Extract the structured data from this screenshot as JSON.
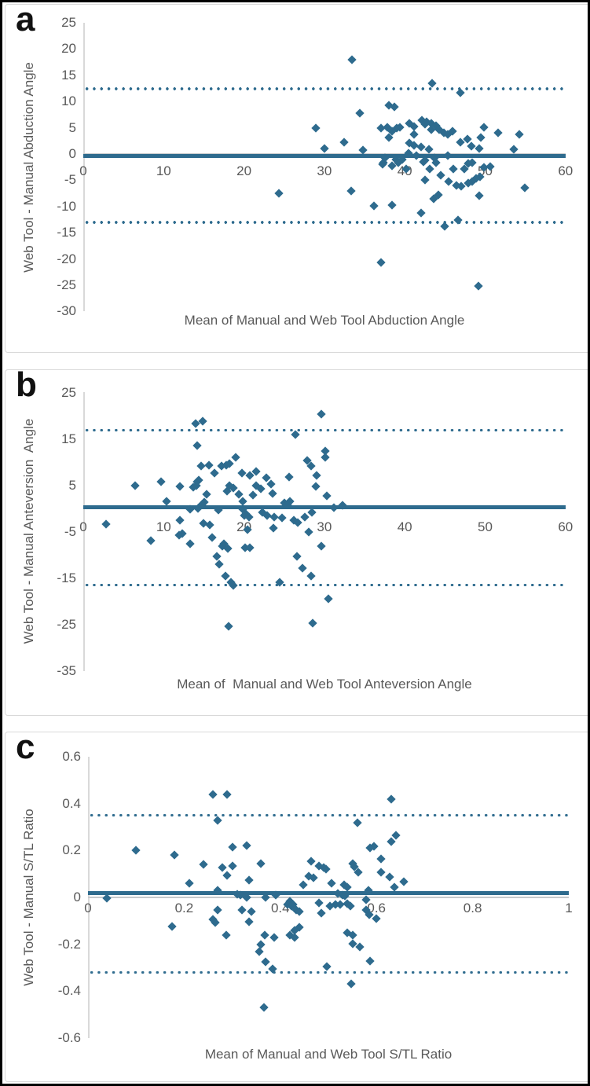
{
  "figure": {
    "type": "bland-altman-figure",
    "panel_count": 3,
    "colors": {
      "marker": "#2e6b8e",
      "mean_line": "#2e6b8e",
      "loa_dotted": "#2e6b8e",
      "axis_gray": "#d9d9d9",
      "zero_line": "#c6c9cc",
      "tick_text": "#595959",
      "panel_border": "#d9d9d9",
      "figure_border": "#000000",
      "panel_letter": "#111111"
    }
  },
  "chart_data": [
    {
      "type": "scatter",
      "panel_label": "a",
      "ylabel": "Web Tool - Manual Abduction Angle",
      "xlabel": "Mean of Manual and Web Tool Abduction Angle",
      "xlim": [
        0,
        60
      ],
      "ylim": [
        -30,
        25
      ],
      "x_tick_labels": [
        "0",
        "10",
        "20",
        "30",
        "40",
        "50",
        "60"
      ],
      "x_tick_values": [
        0,
        10,
        20,
        30,
        40,
        50,
        60
      ],
      "y_tick_labels": [
        "25",
        "20",
        "15",
        "10",
        "5",
        "0",
        "-5",
        "-10",
        "-15",
        "-20",
        "-25",
        "-30"
      ],
      "y_tick_values": [
        25,
        20,
        15,
        10,
        5,
        0,
        -5,
        -10,
        -15,
        -20,
        -25,
        -30
      ],
      "mean_line": -0.35,
      "upper_loa": 12.4,
      "lower_loa": -13.0,
      "grid": false,
      "legend": "none",
      "points": [
        [
          33.4,
          18
        ],
        [
          43.4,
          13.4
        ],
        [
          46.9,
          11.7
        ],
        [
          38.0,
          9.3
        ],
        [
          38.7,
          9.0
        ],
        [
          34.4,
          7.8
        ],
        [
          42.1,
          6.5
        ],
        [
          42.7,
          6.2
        ],
        [
          43.3,
          5.9
        ],
        [
          40.6,
          5.8
        ],
        [
          42.5,
          5.7
        ],
        [
          43.9,
          5.4
        ],
        [
          41.2,
          5.2
        ],
        [
          37.8,
          5.1
        ],
        [
          39.4,
          5.1
        ],
        [
          49.9,
          5.1
        ],
        [
          28.9,
          5.0
        ],
        [
          39.0,
          5.0
        ],
        [
          37.0,
          4.9
        ],
        [
          44.3,
          4.7
        ],
        [
          43.3,
          4.6
        ],
        [
          38.4,
          4.4
        ],
        [
          45.9,
          4.3
        ],
        [
          44.9,
          4.1
        ],
        [
          51.6,
          4.1
        ],
        [
          45.4,
          3.8
        ],
        [
          41.2,
          3.8
        ],
        [
          54.3,
          3.8
        ],
        [
          38.0,
          3.2
        ],
        [
          49.5,
          3.1
        ],
        [
          47.8,
          2.8
        ],
        [
          32.5,
          2.3
        ],
        [
          46.9,
          2.2
        ],
        [
          40.6,
          2.1
        ],
        [
          41.2,
          1.6
        ],
        [
          48.3,
          1.5
        ],
        [
          42.0,
          1.3
        ],
        [
          30.0,
          1.0
        ],
        [
          49.3,
          1.0
        ],
        [
          43.0,
          0.9
        ],
        [
          53.6,
          0.9
        ],
        [
          34.8,
          0.8
        ],
        [
          40.5,
          0.1
        ],
        [
          41.4,
          -0.3
        ],
        [
          45.4,
          -0.3
        ],
        [
          37.5,
          -0.7
        ],
        [
          43.7,
          -0.7
        ],
        [
          38.9,
          -1.0
        ],
        [
          39.7,
          -1.0
        ],
        [
          42.5,
          -1.2
        ],
        [
          42.3,
          -1.5
        ],
        [
          39.2,
          -1.6
        ],
        [
          43.9,
          -1.6
        ],
        [
          48.4,
          -1.6
        ],
        [
          37.3,
          -1.7
        ],
        [
          47.9,
          -1.8
        ],
        [
          37.2,
          -2.0
        ],
        [
          38.4,
          -2.2
        ],
        [
          50.6,
          -2.4
        ],
        [
          49.9,
          -2.6
        ],
        [
          43.1,
          -2.8
        ],
        [
          40.2,
          -2.9
        ],
        [
          46.0,
          -2.9
        ],
        [
          47.4,
          -2.9
        ],
        [
          44.5,
          -4.0
        ],
        [
          49.4,
          -4.4
        ],
        [
          48.9,
          -4.6
        ],
        [
          42.5,
          -4.9
        ],
        [
          45.5,
          -5.3
        ],
        [
          48.4,
          -5.3
        ],
        [
          47.9,
          -5.6
        ],
        [
          46.4,
          -6.0
        ],
        [
          47.0,
          -6.2
        ],
        [
          54.9,
          -6.4
        ],
        [
          33.3,
          -7.1
        ],
        [
          24.3,
          -7.5
        ],
        [
          44.2,
          -7.8
        ],
        [
          49.3,
          -7.9
        ],
        [
          43.6,
          -8.5
        ],
        [
          38.4,
          -9.7
        ],
        [
          36.2,
          -9.9
        ],
        [
          42.0,
          -11.2
        ],
        [
          46.6,
          -12.5
        ],
        [
          45.0,
          -13.8
        ],
        [
          37.0,
          -20.7
        ],
        [
          49.2,
          -25.1
        ]
      ]
    },
    {
      "type": "scatter",
      "panel_label": "b",
      "ylabel": "Web Tool - Manual Anteversion  Angle",
      "xlabel": "Mean of  Manual and Web Tool Anteversion Angle",
      "xlim": [
        0,
        60
      ],
      "ylim": [
        -35,
        25
      ],
      "x_tick_labels": [
        "0",
        "10",
        "20",
        "30",
        "40",
        "50",
        "60"
      ],
      "x_tick_values": [
        0,
        10,
        20,
        30,
        40,
        50,
        60
      ],
      "y_tick_labels": [
        "25",
        "15",
        "5",
        "-5",
        "-15",
        "-25",
        "-35"
      ],
      "y_tick_values": [
        25,
        15,
        5,
        -5,
        -15,
        -25,
        -35
      ],
      "mean_line": 0.3,
      "upper_loa": 16.9,
      "lower_loa": -16.5,
      "grid": false,
      "legend": "none",
      "points": [
        [
          29.6,
          20.3
        ],
        [
          14.9,
          18.8
        ],
        [
          14.0,
          18.3
        ],
        [
          26.4,
          16.0
        ],
        [
          14.2,
          13.6
        ],
        [
          30.1,
          12.4
        ],
        [
          19.0,
          11.1
        ],
        [
          30.1,
          11.1
        ],
        [
          27.9,
          10.3
        ],
        [
          18.2,
          9.7
        ],
        [
          15.6,
          9.4
        ],
        [
          17.8,
          9.4
        ],
        [
          14.7,
          9.2
        ],
        [
          28.3,
          9.2
        ],
        [
          17.2,
          9.1
        ],
        [
          21.5,
          7.9
        ],
        [
          16.3,
          7.7
        ],
        [
          19.7,
          7.6
        ],
        [
          29.0,
          7.2
        ],
        [
          20.7,
          7.1
        ],
        [
          25.6,
          6.7
        ],
        [
          22.8,
          6.6
        ],
        [
          14.4,
          6.1
        ],
        [
          14.2,
          5.7
        ],
        [
          9.7,
          5.7
        ],
        [
          23.4,
          5.2
        ],
        [
          6.5,
          5.0
        ],
        [
          14.1,
          4.9
        ],
        [
          18.2,
          4.9
        ],
        [
          21.5,
          4.9
        ],
        [
          12.0,
          4.7
        ],
        [
          28.9,
          4.7
        ],
        [
          13.7,
          4.5
        ],
        [
          18.7,
          4.4
        ],
        [
          22.1,
          4.2
        ],
        [
          17.9,
          3.7
        ],
        [
          23.6,
          3.2
        ],
        [
          15.3,
          3.0
        ],
        [
          19.4,
          3.0
        ],
        [
          21.1,
          2.9
        ],
        [
          30.3,
          2.7
        ],
        [
          10.4,
          1.5
        ],
        [
          19.8,
          1.5
        ],
        [
          25.7,
          1.5
        ],
        [
          15.1,
          1.3
        ],
        [
          25.0,
          1.2
        ],
        [
          14.8,
          0.8
        ],
        [
          25.4,
          0.8
        ],
        [
          32.3,
          0.7
        ],
        [
          31.2,
          0.2
        ],
        [
          14.3,
          0.0
        ],
        [
          13.3,
          -0.2
        ],
        [
          19.8,
          -0.2
        ],
        [
          16.8,
          -0.3
        ],
        [
          28.4,
          -0.8
        ],
        [
          22.3,
          -0.9
        ],
        [
          20.2,
          -1.2
        ],
        [
          20.0,
          -1.6
        ],
        [
          22.9,
          -1.6
        ],
        [
          20.6,
          -1.8
        ],
        [
          23.8,
          -1.8
        ],
        [
          27.6,
          -1.8
        ],
        [
          24.7,
          -2.0
        ],
        [
          12.0,
          -2.5
        ],
        [
          26.2,
          -2.5
        ],
        [
          26.7,
          -3.0
        ],
        [
          15.0,
          -3.2
        ],
        [
          2.8,
          -3.4
        ],
        [
          15.7,
          -3.5
        ],
        [
          23.7,
          -4.2
        ],
        [
          20.4,
          -4.6
        ],
        [
          28.1,
          -5.0
        ],
        [
          12.3,
          -5.4
        ],
        [
          11.9,
          -5.7
        ],
        [
          16.0,
          -6.2
        ],
        [
          8.4,
          -6.9
        ],
        [
          13.3,
          -7.7
        ],
        [
          17.5,
          -7.7
        ],
        [
          17.3,
          -8.2
        ],
        [
          29.6,
          -8.2
        ],
        [
          20.1,
          -8.4
        ],
        [
          20.7,
          -8.4
        ],
        [
          18.0,
          -8.6
        ],
        [
          16.6,
          -10.3
        ],
        [
          26.6,
          -10.4
        ],
        [
          16.9,
          -12.0
        ],
        [
          27.3,
          -12.9
        ],
        [
          17.7,
          -14.5
        ],
        [
          28.3,
          -14.6
        ],
        [
          18.4,
          -16.0
        ],
        [
          24.4,
          -16.0
        ],
        [
          18.7,
          -16.6
        ],
        [
          30.5,
          -19.5
        ],
        [
          28.5,
          -24.7
        ],
        [
          18.1,
          -25.5
        ]
      ]
    },
    {
      "type": "scatter",
      "panel_label": "c",
      "ylabel": "Web Tool - Manual S/TL Ratio",
      "xlabel": "Mean of Manual and Web Tool S/TL Ratio",
      "xlim": [
        0,
        1
      ],
      "ylim": [
        -0.6,
        0.6
      ],
      "x_tick_labels": [
        "0",
        "0.2",
        "0.4",
        "0.6",
        "0.8",
        "1"
      ],
      "x_tick_values": [
        0,
        0.2,
        0.4,
        0.6,
        0.8,
        1
      ],
      "y_tick_labels": [
        "0.6",
        "0.4",
        "0.2",
        "0",
        "-0.2",
        "-0.4",
        "-0.6"
      ],
      "y_tick_values": [
        0.6,
        0.4,
        0.2,
        0,
        -0.2,
        -0.4,
        -0.6
      ],
      "mean_line": 0.02,
      "upper_loa": 0.35,
      "lower_loa": -0.32,
      "grid": false,
      "legend": "none",
      "points": [
        [
          0.26,
          0.44
        ],
        [
          0.29,
          0.44
        ],
        [
          0.63,
          0.42
        ],
        [
          0.27,
          0.33
        ],
        [
          0.56,
          0.32
        ],
        [
          0.64,
          0.265
        ],
        [
          0.63,
          0.237
        ],
        [
          0.33,
          0.22
        ],
        [
          0.3,
          0.215
        ],
        [
          0.594,
          0.217
        ],
        [
          0.587,
          0.21
        ],
        [
          0.1,
          0.2
        ],
        [
          0.18,
          0.18
        ],
        [
          0.61,
          0.165
        ],
        [
          0.464,
          0.156
        ],
        [
          0.36,
          0.145
        ],
        [
          0.55,
          0.143
        ],
        [
          0.24,
          0.14
        ],
        [
          0.3,
          0.135
        ],
        [
          0.48,
          0.133
        ],
        [
          0.554,
          0.13
        ],
        [
          0.28,
          0.127
        ],
        [
          0.49,
          0.127
        ],
        [
          0.495,
          0.122
        ],
        [
          0.562,
          0.107
        ],
        [
          0.61,
          0.107
        ],
        [
          0.29,
          0.095
        ],
        [
          0.459,
          0.091
        ],
        [
          0.627,
          0.088
        ],
        [
          0.469,
          0.084
        ],
        [
          0.335,
          0.075
        ],
        [
          0.657,
          0.068
        ],
        [
          0.507,
          0.062
        ],
        [
          0.21,
          0.06
        ],
        [
          0.448,
          0.055
        ],
        [
          0.533,
          0.055
        ],
        [
          0.539,
          0.045
        ],
        [
          0.637,
          0.042
        ],
        [
          0.27,
          0.03
        ],
        [
          0.583,
          0.03
        ],
        [
          0.52,
          0.016
        ],
        [
          0.31,
          0.013
        ],
        [
          0.317,
          0.01
        ],
        [
          0.39,
          0.01
        ],
        [
          0.53,
          0.01
        ],
        [
          0.534,
          0.006
        ],
        [
          0.33,
          0.0
        ],
        [
          0.37,
          0.0
        ],
        [
          0.04,
          -0.005
        ],
        [
          0.578,
          -0.01
        ],
        [
          0.42,
          -0.016
        ],
        [
          0.48,
          -0.023
        ],
        [
          0.54,
          -0.026
        ],
        [
          0.415,
          -0.03
        ],
        [
          0.427,
          -0.03
        ],
        [
          0.515,
          -0.03
        ],
        [
          0.525,
          -0.03
        ],
        [
          0.423,
          -0.036
        ],
        [
          0.503,
          -0.036
        ],
        [
          0.546,
          -0.036
        ],
        [
          0.27,
          -0.055
        ],
        [
          0.32,
          -0.055
        ],
        [
          0.433,
          -0.055
        ],
        [
          0.578,
          -0.055
        ],
        [
          0.34,
          -0.062
        ],
        [
          0.44,
          -0.062
        ],
        [
          0.485,
          -0.068
        ],
        [
          0.585,
          -0.075
        ],
        [
          0.6,
          -0.091
        ],
        [
          0.26,
          -0.094
        ],
        [
          0.335,
          -0.104
        ],
        [
          0.265,
          -0.107
        ],
        [
          0.175,
          -0.125
        ],
        [
          0.44,
          -0.127
        ],
        [
          0.43,
          -0.14
        ],
        [
          0.54,
          -0.15
        ],
        [
          0.288,
          -0.16
        ],
        [
          0.367,
          -0.16
        ],
        [
          0.42,
          -0.16
        ],
        [
          0.55,
          -0.16
        ],
        [
          0.387,
          -0.17
        ],
        [
          0.43,
          -0.17
        ],
        [
          0.55,
          -0.198
        ],
        [
          0.36,
          -0.2
        ],
        [
          0.565,
          -0.21
        ],
        [
          0.356,
          -0.233
        ],
        [
          0.587,
          -0.273
        ],
        [
          0.369,
          -0.276
        ],
        [
          0.496,
          -0.295
        ],
        [
          0.384,
          -0.305
        ],
        [
          0.547,
          -0.37
        ],
        [
          0.366,
          -0.47
        ]
      ]
    }
  ]
}
